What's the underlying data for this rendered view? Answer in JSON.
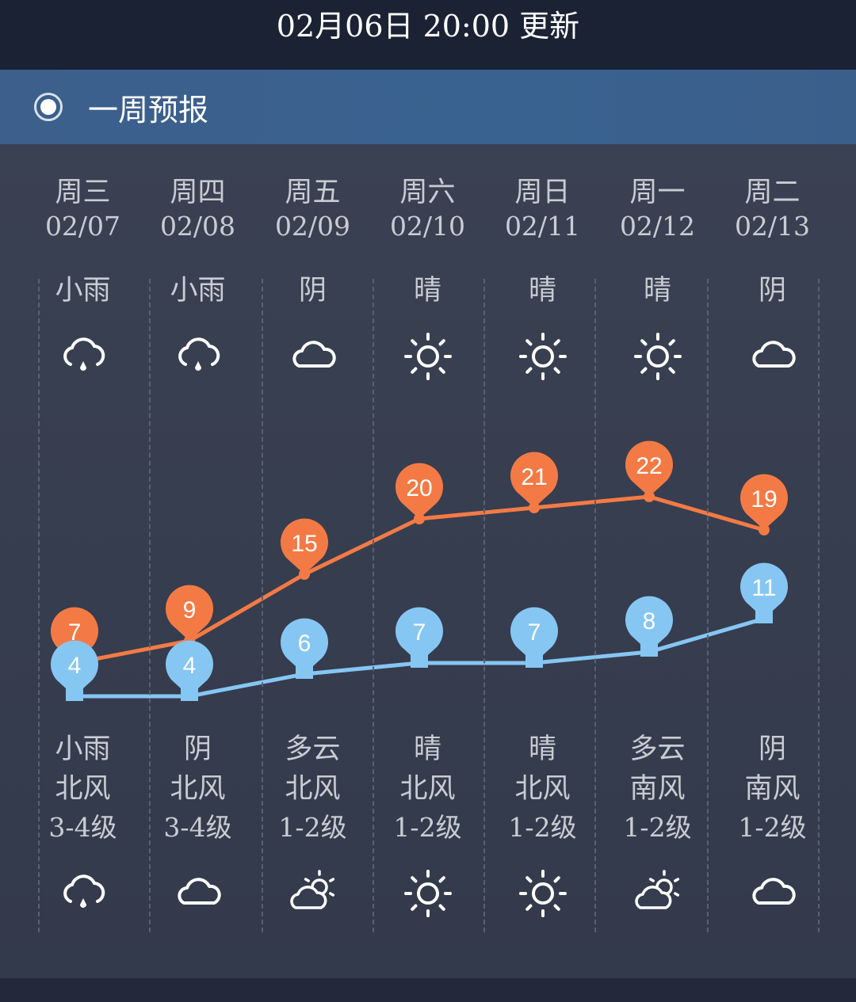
{
  "header": {
    "update_time": "02月06日 20:00 更新"
  },
  "banner": {
    "title": "一周预报",
    "icon": "radio-selected-icon"
  },
  "colors": {
    "high": "#f47a45",
    "low": "#86c6f2",
    "background": "#363d4e",
    "banner": "#3c5f8c"
  },
  "days": [
    {
      "day": "周三",
      "date": "02/07",
      "day_weather": "小雨",
      "day_icon": "rain",
      "high": 7,
      "low": 4,
      "night_weather": "小雨",
      "wind": "北风",
      "level": "3-4级",
      "night_icon": "rain"
    },
    {
      "day": "周四",
      "date": "02/08",
      "day_weather": "小雨",
      "day_icon": "rain",
      "high": 9,
      "low": 4,
      "night_weather": "阴",
      "wind": "北风",
      "level": "3-4级",
      "night_icon": "cloud"
    },
    {
      "day": "周五",
      "date": "02/09",
      "day_weather": "阴",
      "day_icon": "cloud",
      "high": 15,
      "low": 6,
      "night_weather": "多云",
      "wind": "北风",
      "level": "1-2级",
      "night_icon": "partly"
    },
    {
      "day": "周六",
      "date": "02/10",
      "day_weather": "晴",
      "day_icon": "sun",
      "high": 20,
      "low": 7,
      "night_weather": "晴",
      "wind": "北风",
      "level": "1-2级",
      "night_icon": "sun"
    },
    {
      "day": "周日",
      "date": "02/11",
      "day_weather": "晴",
      "day_icon": "sun",
      "high": 21,
      "low": 7,
      "night_weather": "晴",
      "wind": "北风",
      "level": "1-2级",
      "night_icon": "sun"
    },
    {
      "day": "周一",
      "date": "02/12",
      "day_weather": "晴",
      "day_icon": "sun",
      "high": 22,
      "low": 8,
      "night_weather": "多云",
      "wind": "南风",
      "level": "1-2级",
      "night_icon": "partly"
    },
    {
      "day": "周二",
      "date": "02/13",
      "day_weather": "阴",
      "day_icon": "cloud",
      "high": 19,
      "low": 11,
      "night_weather": "阴",
      "wind": "南风",
      "level": "1-2级",
      "night_icon": "cloud"
    }
  ]
}
